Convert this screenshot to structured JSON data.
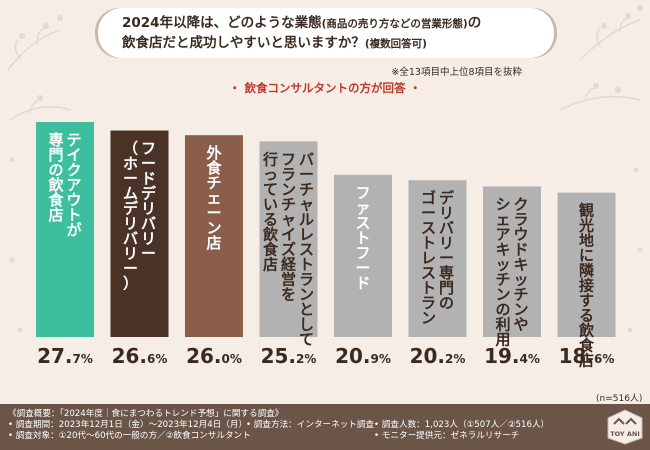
{
  "title": {
    "line1": "2024年以降は、どのような業態",
    "line1_small": "(商品の売り方などの営業形態)",
    "line1_end": "の",
    "line2": "飲食店だと成功しやすいと思いますか？",
    "line2_small": "(複数回答可)"
  },
  "note": "※全13項目中上位8項目を抜粋",
  "subtitle": "・ 飲食コンサルタントの方が回答 ・",
  "n_label": "(n=516人)",
  "chart_data": {
    "type": "bar",
    "categories": [
      "テイクアウトが専門の飲食店",
      "フードデリバリー(ホームデリバリー)",
      "外食チェーン店",
      "バーチャルレストランとしてフランチャイズ経営を行っている飲食店",
      "ファストフード",
      "デリバリー専門のゴーストレストラン",
      "クラウドキッチンやシェアキッチンの利用",
      "観光地に隣接する飲食店"
    ],
    "label_lines": [
      [
        "テイクアウトが",
        "専門の飲食店"
      ],
      [
        "フードデリバリー",
        "（ホームデリバリー）"
      ],
      [
        "外食チェーン店"
      ],
      [
        "バーチャルレストランとして",
        "フランチャイズ経営を",
        "行っている飲食店"
      ],
      [
        "ファストフード"
      ],
      [
        "デリバリー専門の",
        "ゴーストレストラン"
      ],
      [
        "クラウドキッチンや",
        "シェアキッチンの利用"
      ],
      [
        "観光地に隣接する飲食店"
      ]
    ],
    "values": [
      27.7,
      26.6,
      26.0,
      25.2,
      20.9,
      20.2,
      19.4,
      18.6
    ],
    "value_labels": [
      [
        "27.",
        "7",
        "%"
      ],
      [
        "26.",
        "6",
        "%"
      ],
      [
        "26.",
        "0",
        "%"
      ],
      [
        "25.",
        "2",
        "%"
      ],
      [
        "20.",
        "9",
        "%"
      ],
      [
        "20.",
        "2",
        "%"
      ],
      [
        "19.",
        "4",
        "%"
      ],
      [
        "18.",
        "6",
        "%"
      ]
    ],
    "colors": [
      "#3dbf9f",
      "#4a3227",
      "#8b5e4b",
      "#b2b2b2",
      "#b2b2b2",
      "#b2b2b2",
      "#b2b2b2",
      "#b2b2b2"
    ],
    "label_colors": [
      "#ffffff",
      "#ffffff",
      "#ffffff",
      "#3a2a20",
      "#ffffff",
      "#3a2a20",
      "#3a2a20",
      "#3a2a20"
    ],
    "ylim": [
      0,
      30
    ],
    "grid": false
  },
  "footer": {
    "row1": "《調査概要：「2024年度｜食にまつわるトレンド予想」に関する調査》",
    "row2_a": "• 調査期間：2023年12月1日（金）〜2023年12月4日（月）",
    "row2_b": "• 調査方法：インターネット調査",
    "row2_c": "• 調査人数：1,023人（①507人／②516人）",
    "row3_a": "• 調査対象：①20代〜60代の一般の方／②飲食コンサルタント",
    "row3_b": "• モニター提供元：ゼネラルリサーチ"
  },
  "logo_text": "TOY ANI"
}
